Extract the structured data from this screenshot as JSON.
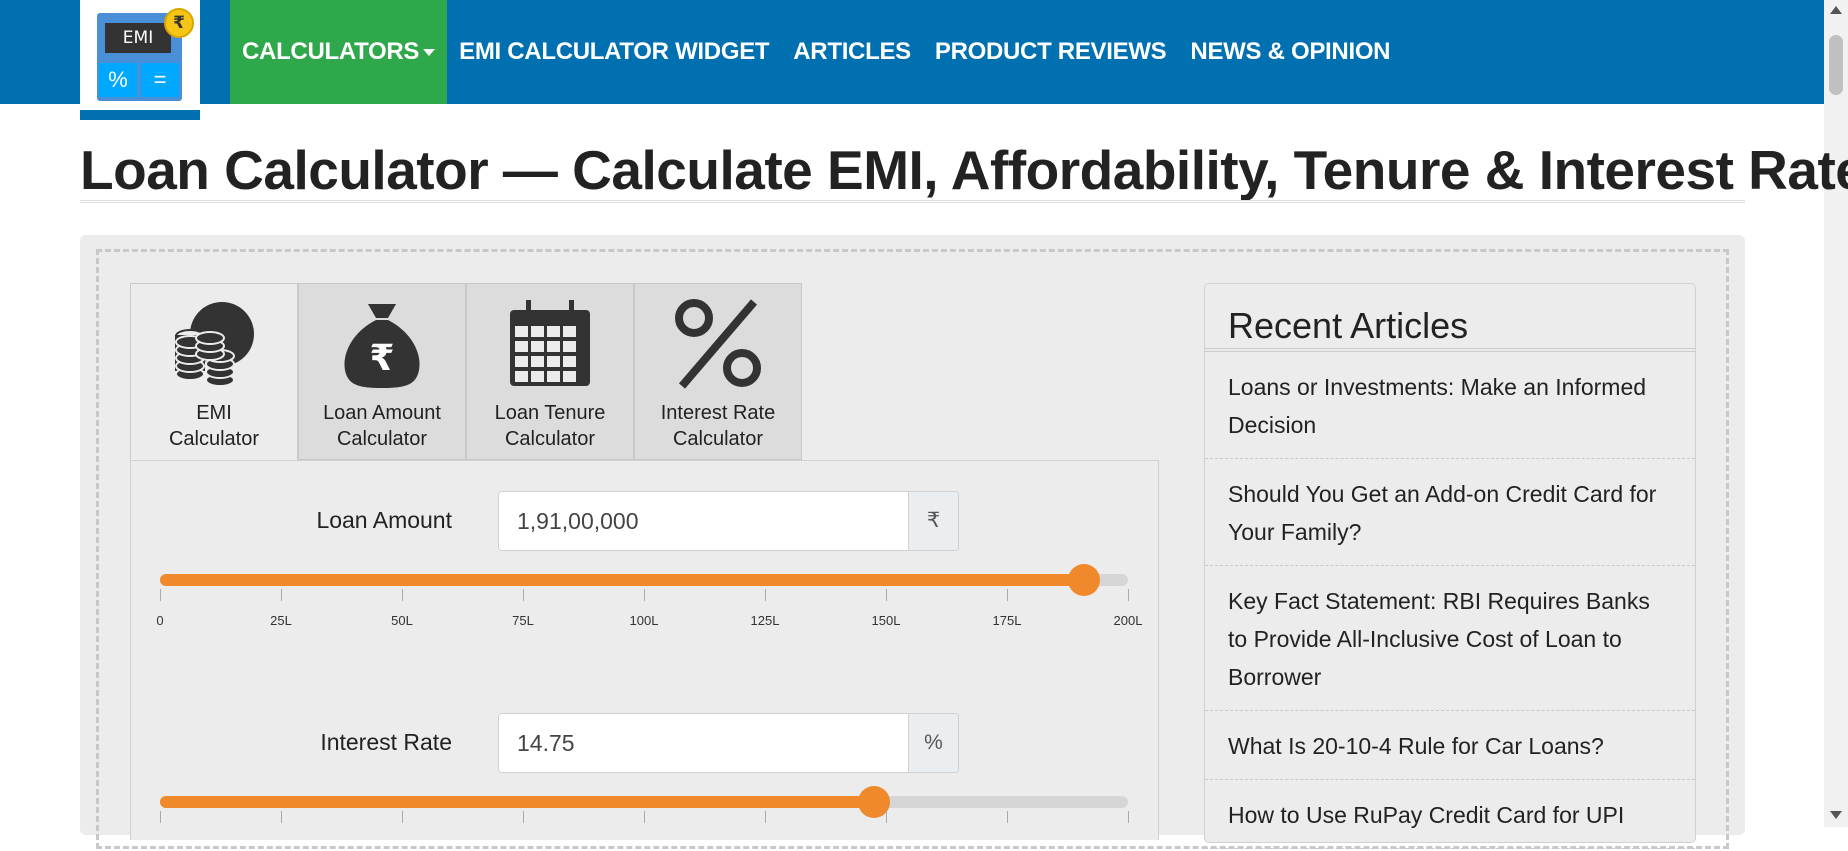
{
  "logo": {
    "screen_text": "EMI",
    "coin_symbol": "₹",
    "key_left": "%",
    "key_right": "="
  },
  "nav": {
    "items": [
      {
        "label": "CALCULATORS",
        "active": true,
        "dropdown": true
      },
      {
        "label": "EMI CALCULATOR WIDGET"
      },
      {
        "label": "ARTICLES"
      },
      {
        "label": "PRODUCT REVIEWS"
      },
      {
        "label": "NEWS & OPINION"
      }
    ]
  },
  "page": {
    "title": "Loan Calculator — Calculate EMI, Affordability, Tenure & Interest Rate"
  },
  "tabs": [
    {
      "line1": "EMI",
      "line2": "Calculator",
      "icon": "coins-icon",
      "active": true
    },
    {
      "line1": "Loan Amount",
      "line2": "Calculator",
      "icon": "money-bag-icon"
    },
    {
      "line1": "Loan Tenure",
      "line2": "Calculator",
      "icon": "calendar-icon"
    },
    {
      "line1": "Interest Rate",
      "line2": "Calculator",
      "icon": "percent-icon"
    }
  ],
  "form": {
    "loan_amount": {
      "label": "Loan Amount",
      "value": "1,91,00,000",
      "addon": "₹",
      "slider_fraction": 0.955,
      "ticks": [
        "0",
        "25L",
        "50L",
        "75L",
        "100L",
        "125L",
        "150L",
        "175L",
        "200L"
      ]
    },
    "interest_rate": {
      "label": "Interest Rate",
      "value": "14.75",
      "addon": "%",
      "slider_fraction": 0.7375
    }
  },
  "sidebar": {
    "title": "Recent Articles",
    "articles": [
      "Loans or Investments: Make an Informed Decision",
      "Should You Get an Add-on Credit Card for Your Family?",
      "Key Fact Statement: RBI Requires Banks to Provide All-Inclusive Cost of Loan to Borrower",
      "What Is 20-10-4 Rule for Car Loans?",
      "How to Use RuPay Credit Card for UPI"
    ]
  },
  "colors": {
    "nav_bg": "#0070b0",
    "nav_active": "#2ea84a",
    "slider_accent": "#f0892c"
  }
}
